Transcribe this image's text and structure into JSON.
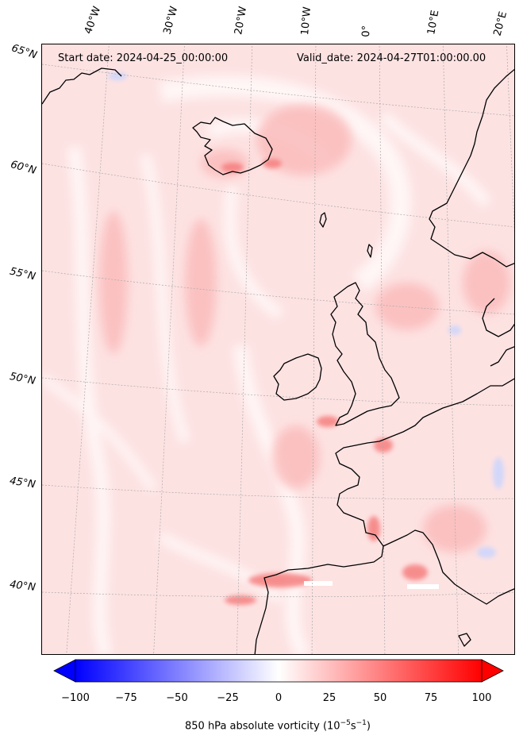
{
  "header": {
    "start_date": "Start date: 2024-04-25_00:00:00",
    "valid_date": "Valid_date: 2024-04-27T01:00:00.00"
  },
  "map": {
    "variable": "850 hPa absolute vorticity",
    "lon_labels": [
      "40°W",
      "30°W",
      "20°W",
      "10°W",
      "0°",
      "10°E",
      "20°E"
    ],
    "lat_labels": [
      "65°N",
      "60°N",
      "55°N",
      "50°N",
      "45°N",
      "40°N"
    ],
    "colors": {
      "land_edge": "#000000",
      "grid": "#aaaaaa",
      "positive": "#ff0000",
      "negative": "#0000ff"
    }
  },
  "colorbar": {
    "min": -100,
    "max": 100,
    "ticks": [
      "−100",
      "−75",
      "−50",
      "−25",
      "0",
      "25",
      "50",
      "75",
      "100"
    ],
    "label": "850 hPa absolute vorticity (10",
    "label_exp": "−5",
    "label_mid": "s",
    "label_exp2": "−1",
    "label_end": ")"
  }
}
